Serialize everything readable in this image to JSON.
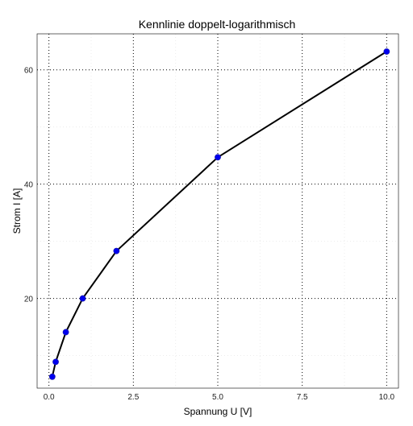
{
  "chart_data": {
    "type": "line",
    "title": "Kennlinie doppelt-logarithmisch",
    "xlabel": "Spannung U [V]",
    "ylabel": "Strom I [A]",
    "xlim": [
      -0.35,
      10.35
    ],
    "ylim": [
      4.3,
      66.3
    ],
    "x_ticks": [
      0,
      2.5,
      5,
      7.5,
      10
    ],
    "x_tick_labels": [
      "0.0",
      "2.5",
      "5.0",
      "7.5",
      "10.0"
    ],
    "y_ticks": [
      20,
      40,
      60
    ],
    "y_tick_labels": [
      "20",
      "40",
      "60"
    ],
    "grid": true,
    "legend": "none",
    "series": [
      {
        "x": [
          0.1,
          0.2,
          0.5,
          1,
          2,
          5,
          10
        ],
        "values": [
          6.3,
          8.9,
          14.1,
          20.0,
          28.3,
          44.7,
          63.2
        ]
      }
    ],
    "colors": {
      "points": "#0000ee",
      "line": "#000000",
      "grid": "#000000",
      "border": "#000000"
    }
  }
}
